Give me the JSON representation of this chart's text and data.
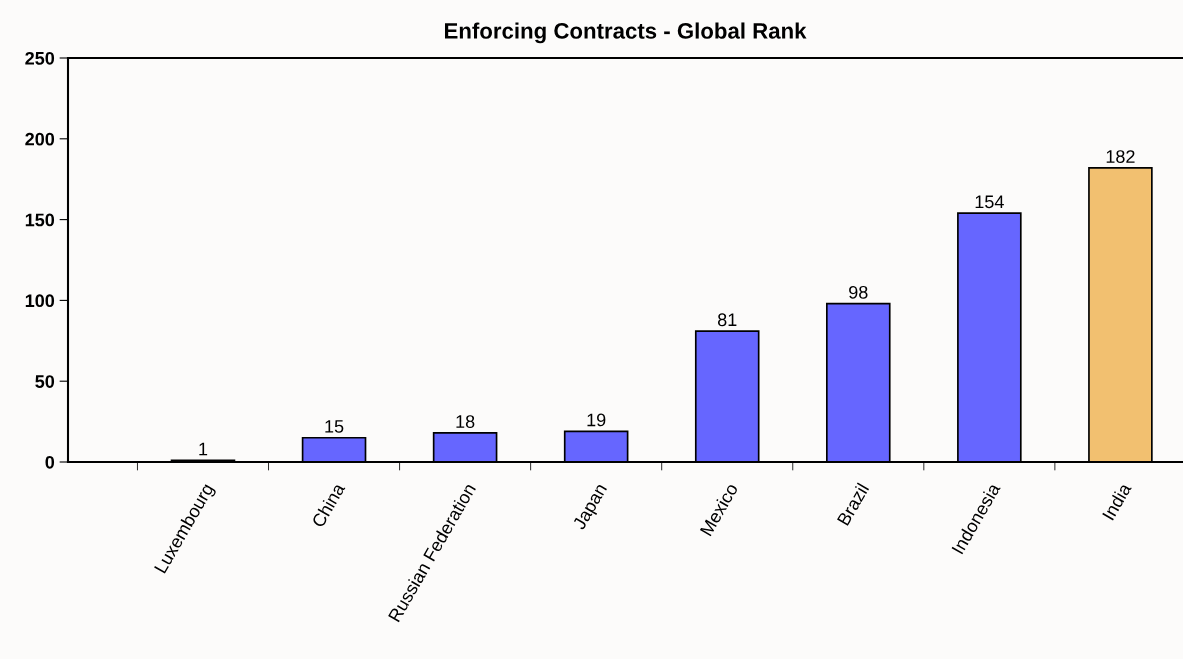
{
  "chart_data": {
    "type": "bar",
    "title": "Enforcing Contracts - Global Rank",
    "categories": [
      "Luxembourg",
      "China",
      "Russian Federation",
      "Japan",
      "Mexico",
      "Brazil",
      "Indonesia",
      "India"
    ],
    "values": [
      1,
      15,
      18,
      19,
      81,
      98,
      154,
      182
    ],
    "colors": [
      "#6666ff",
      "#6666ff",
      "#6666ff",
      "#6666ff",
      "#6666ff",
      "#6666ff",
      "#6666ff",
      "#f2c070"
    ],
    "ylim": [
      0,
      250
    ],
    "yticks": [
      0,
      50,
      100,
      150,
      200,
      250
    ],
    "grid": false,
    "data_labels": true
  }
}
